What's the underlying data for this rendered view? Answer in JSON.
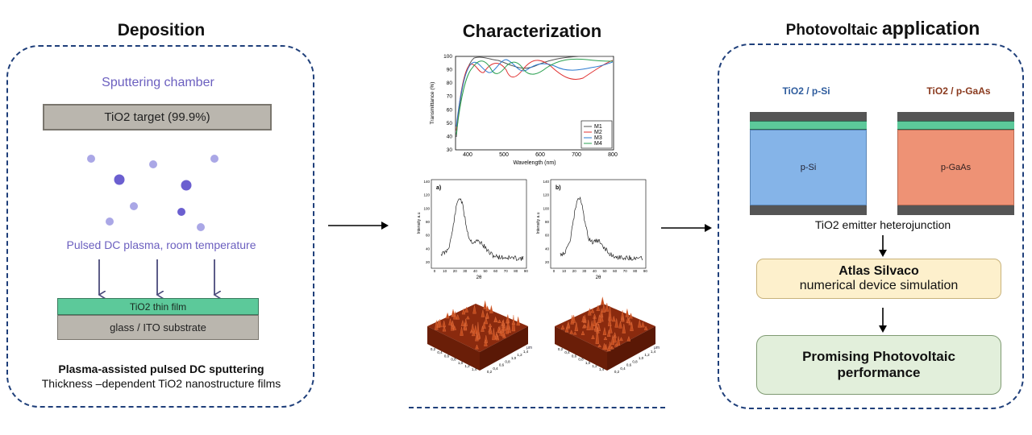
{
  "deposition": {
    "title": "Deposition",
    "chamber_label": "Sputtering chamber",
    "target_label": "TiO2 target (99.9%)",
    "plasma_label": "Pulsed DC plasma, room temperature",
    "film_label": "TiO2 thin film",
    "substrate_label": "glass / ITO substrate",
    "caption_bold": "Plasma-assisted pulsed DC sputtering",
    "caption": "Thickness –dependent TiO2 nanostructure films"
  },
  "characterization": {
    "title": "Characterization",
    "transmittance": {
      "ylabel": "Transmittance (%)",
      "xlabel": "Wavelength (nm)",
      "yticks": [
        "30",
        "40",
        "50",
        "60",
        "70",
        "80",
        "90",
        "100"
      ],
      "xticks": [
        "400",
        "500",
        "600",
        "700",
        "800"
      ],
      "legend": [
        "M1",
        "M2",
        "M3",
        "M4"
      ],
      "colors": [
        "#555555",
        "#e03030",
        "#2a7ad0",
        "#2aa050"
      ]
    },
    "xrd_a": {
      "label": "a)",
      "ylabel": "Intensity a.u",
      "xlabel": "2θ",
      "yticks": [
        "20",
        "40",
        "60",
        "80",
        "100",
        "120",
        "140"
      ],
      "xticks": [
        "0",
        "10",
        "20",
        "30",
        "40",
        "50",
        "60",
        "70",
        "80",
        "90"
      ]
    },
    "xrd_b": {
      "label": "b)",
      "ylabel": "Intensity a.u",
      "xlabel": "2θ",
      "yticks": [
        "20",
        "40",
        "60",
        "80",
        "100",
        "120",
        "140"
      ],
      "xticks": [
        "0",
        "10",
        "20",
        "30",
        "40",
        "50",
        "60",
        "70",
        "80",
        "90"
      ]
    },
    "afm_ticks": [
      "0,2",
      "0,4",
      "0,6",
      "0,8",
      "1,0",
      "1,2",
      "1,4"
    ],
    "afm_unit": "μm"
  },
  "photovoltaic": {
    "title_part1": "Photovoltaic ",
    "title_part2": "application",
    "device_si_label": "TiO2 / p-Si",
    "device_gaas_label": "TiO2 / p-GaAs",
    "si_layer": "p-Si",
    "gaas_layer": "p-GaAs",
    "heterojunction_label": "TiO2 emitter heterojunction",
    "atlas_title": "Atlas Silvaco",
    "atlas_sub": "numerical device simulation",
    "result_line1": "Promising Photovoltaic",
    "result_line2": "performance"
  },
  "colors": {
    "box_border": "#1f3f7a",
    "tio2_green": "#5cc99a",
    "target_gray": "#bab6ae",
    "purple": "#6b5fbf",
    "si_blue": "#85b4e8",
    "gaas_orange": "#ee9275",
    "contact_gray": "#555555",
    "atlas_fill": "#fdf0cc",
    "result_fill": "#e2efdb",
    "si_label_color": "#2f5d9e",
    "gaas_label_color": "#8a3a1e"
  }
}
